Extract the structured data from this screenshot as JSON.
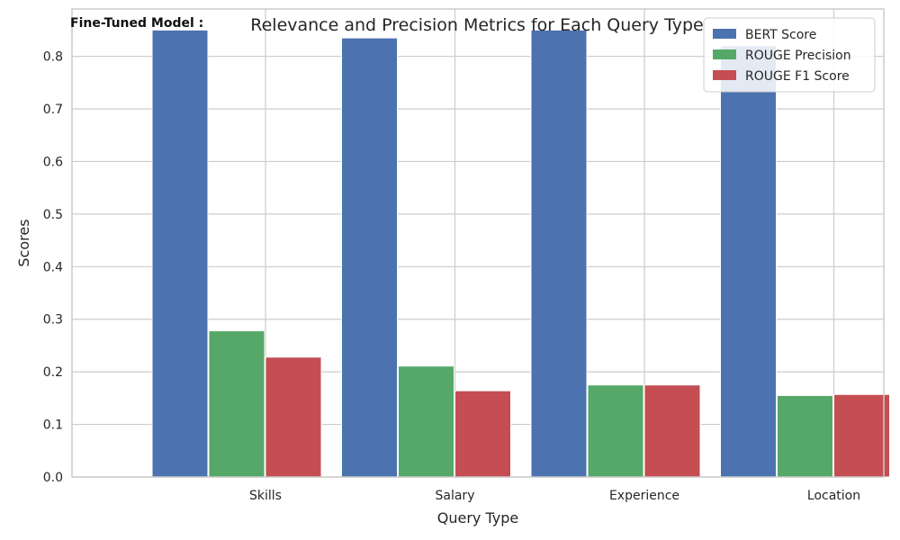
{
  "header": {
    "label": "Fine-Tuned Model :"
  },
  "chart_data": {
    "type": "bar",
    "title": "Relevance and Precision Metrics for Each Query Type",
    "xlabel": "Query Type",
    "ylabel": "Scores",
    "categories": [
      "Skills",
      "Salary",
      "Experience",
      "Location"
    ],
    "series": [
      {
        "name": "BERT Score",
        "color": "#4c72b0",
        "values": [
          0.85,
          0.835,
          0.85,
          0.82
        ]
      },
      {
        "name": "ROUGE Precision",
        "color": "#55a868",
        "values": [
          0.278,
          0.211,
          0.175,
          0.155
        ]
      },
      {
        "name": "ROUGE F1 Score",
        "color": "#c44e52",
        "values": [
          0.228,
          0.164,
          0.175,
          0.157
        ]
      }
    ],
    "ylim": [
      0,
      0.89
    ],
    "yticks": [
      0.0,
      0.1,
      0.2,
      0.3,
      0.4,
      0.5,
      0.6,
      0.7,
      0.8
    ],
    "ytick_labels": [
      "0.0",
      "0.1",
      "0.2",
      "0.3",
      "0.4",
      "0.5",
      "0.6",
      "0.7",
      "0.8"
    ],
    "grid": true,
    "legend": "top-right"
  }
}
